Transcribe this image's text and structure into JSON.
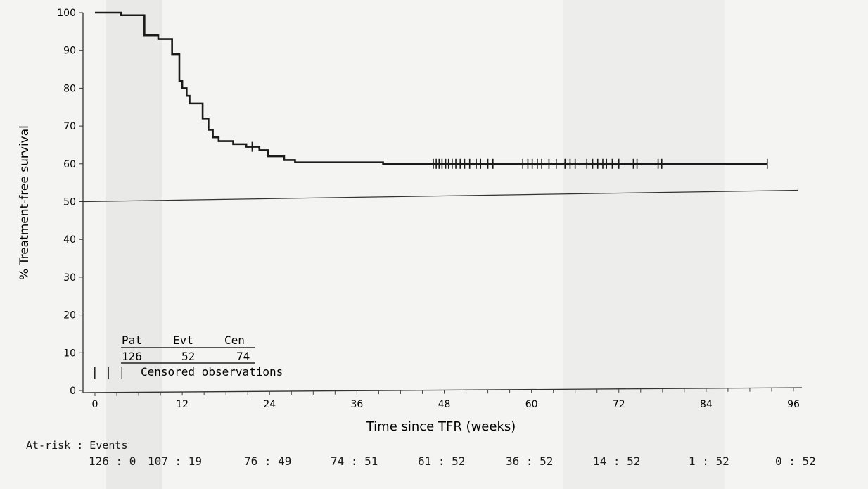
{
  "chart_data": {
    "type": "line",
    "subtype": "kaplan-meier",
    "title": "",
    "xlabel": "Time since TFR (weeks)",
    "ylabel": "% Treatment-free survival",
    "xlim": [
      0,
      96
    ],
    "ylim": [
      0,
      100
    ],
    "xticks": [
      0,
      12,
      24,
      36,
      48,
      60,
      72,
      84,
      96
    ],
    "yticks": [
      0,
      10,
      20,
      30,
      40,
      50,
      60,
      70,
      80,
      90,
      100
    ],
    "grid": false,
    "reference_line_y": 50,
    "line_color": "#1a1a1a",
    "steps": [
      [
        0,
        100
      ],
      [
        3.6,
        99.3
      ],
      [
        6.8,
        94
      ],
      [
        8.7,
        93
      ],
      [
        10.6,
        89
      ],
      [
        11.6,
        82
      ],
      [
        12.0,
        80
      ],
      [
        12.6,
        78
      ],
      [
        13.0,
        76
      ],
      [
        14.8,
        72
      ],
      [
        15.6,
        69
      ],
      [
        16.2,
        67
      ],
      [
        17.0,
        66
      ],
      [
        19.0,
        65.2
      ],
      [
        20.8,
        64.5
      ],
      [
        22.6,
        63.6
      ],
      [
        23.8,
        62
      ],
      [
        26.0,
        61
      ],
      [
        27.5,
        60.4
      ],
      [
        39.6,
        60
      ],
      [
        92.4,
        60
      ]
    ],
    "censored_weeks": [
      21.6,
      46.5,
      46.9,
      47.3,
      47.7,
      48.2,
      48.6,
      49.1,
      49.6,
      50.2,
      50.8,
      51.5,
      52.4,
      53.0,
      54.0,
      54.7,
      58.8,
      59.5,
      60.1,
      60.8,
      61.4,
      62.4,
      63.4,
      64.6,
      65.3,
      66.0,
      67.6,
      68.4,
      69.1,
      69.8,
      70.3,
      71.1,
      72.0,
      74.0,
      74.5,
      77.4,
      77.9,
      92.4
    ],
    "summary_table": {
      "headers": [
        "Pat",
        "Evt",
        "Cen"
      ],
      "values": [
        "126",
        "52",
        "74"
      ]
    },
    "legend": {
      "symbol": "| | |",
      "label": "Censored observations"
    },
    "at_risk": {
      "label": "At-risk : Events",
      "values": [
        "126 : 0",
        "107 : 19",
        "76 : 49",
        "74 : 51",
        "61 : 52",
        "36 : 52",
        "14 : 52",
        "1 : 52",
        "0 : 52"
      ]
    }
  }
}
